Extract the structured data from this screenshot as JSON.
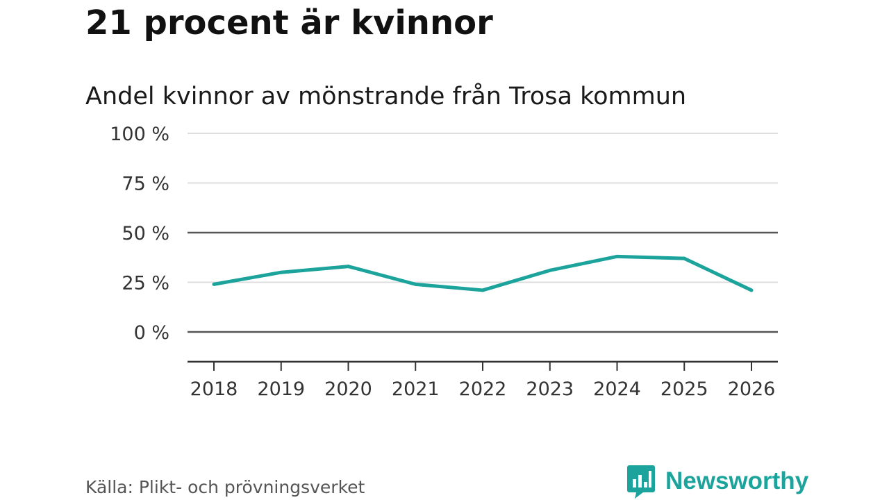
{
  "headline": "21 procent är kvinnor",
  "source": "Källa: Plikt- och prövningsverket",
  "brand": {
    "name": "Newsworthy",
    "icon": "newsworthy-logo-icon",
    "color": "#1ba39c"
  },
  "chart_data": {
    "type": "line",
    "title": "Andel kvinnor av mönstrande från Trosa kommun",
    "xlabel": "",
    "ylabel": "",
    "categories": [
      "2018",
      "2019",
      "2020",
      "2021",
      "2022",
      "2023",
      "2024",
      "2025",
      "2026"
    ],
    "series": [
      {
        "name": "Andel kvinnor",
        "values": [
          24,
          30,
          33,
          24,
          21,
          31,
          38,
          37,
          21
        ],
        "color": "#1ba39c"
      }
    ],
    "yticks": [
      0,
      25,
      50,
      75,
      100
    ],
    "ytick_labels": [
      "0 %",
      "25 %",
      "50 %",
      "75 %",
      "100 %"
    ],
    "ylim": [
      -15,
      100
    ],
    "grid": true
  }
}
